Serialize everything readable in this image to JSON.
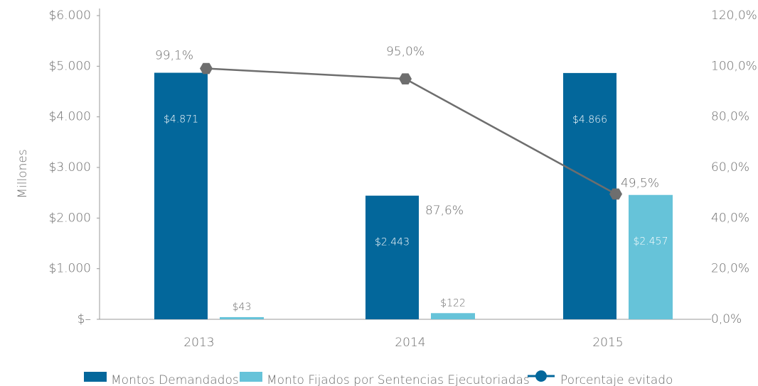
{
  "chart_data": {
    "type": "bar_line",
    "y_label": "Millones",
    "categories": [
      "2013",
      "2014",
      "2015"
    ],
    "ylim": [
      0,
      6000
    ],
    "yticks": [
      {
        "value": 0,
        "label": "$–"
      },
      {
        "value": 1000,
        "label": "$1.000"
      },
      {
        "value": 2000,
        "label": "$2.000"
      },
      {
        "value": 3000,
        "label": "$3.000"
      },
      {
        "value": 4000,
        "label": "$4.000"
      },
      {
        "value": 5000,
        "label": "$5.000"
      },
      {
        "value": 6000,
        "label": "$6.000"
      }
    ],
    "y2lim": [
      0,
      120
    ],
    "y2ticks": [
      {
        "value": 0,
        "label": "0,0%"
      },
      {
        "value": 20,
        "label": "20,0%"
      },
      {
        "value": 40,
        "label": "40,0%"
      },
      {
        "value": 60,
        "label": "60,0%"
      },
      {
        "value": 80,
        "label": "80,0%"
      },
      {
        "value": 100,
        "label": "100,0%"
      },
      {
        "value": 120,
        "label": "120,0%"
      }
    ],
    "series": [
      {
        "name": "Montos Demandados",
        "type": "bar",
        "color": "#03679b",
        "values": [
          4871,
          2443,
          4866
        ],
        "value_labels": [
          "$4.871",
          "$2.443",
          "$4.866"
        ]
      },
      {
        "name": "Monto Fijados por Sentencias Ejecutoriadas",
        "type": "bar",
        "color": "#66c3d9",
        "values": [
          43,
          122,
          2457
        ],
        "value_labels": [
          "$43",
          "$122",
          "$2.457"
        ]
      },
      {
        "name": "Porcentaje evitado",
        "type": "line",
        "axis": "y2",
        "color": "#6e6e6e",
        "legend_color": "#03679b",
        "values": [
          99.1,
          95.0,
          49.5
        ],
        "value_labels": [
          "99,1%",
          "95,0%",
          "49,5%"
        ]
      }
    ],
    "annotations": [
      "87,6%"
    ]
  }
}
